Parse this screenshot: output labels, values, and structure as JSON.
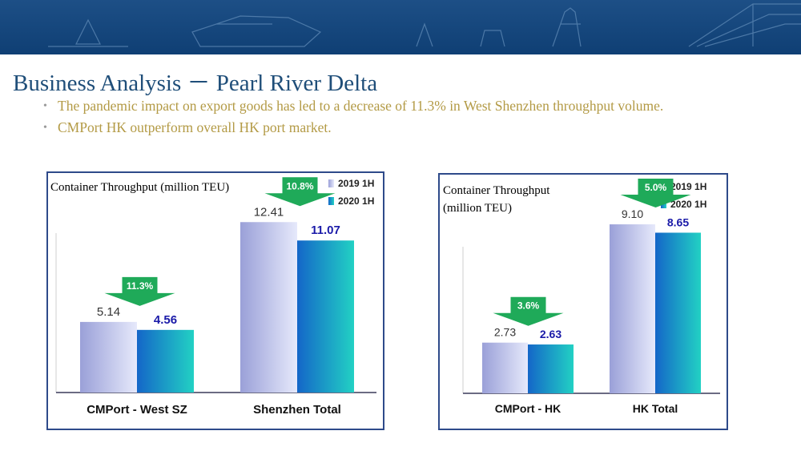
{
  "page": {
    "title": "Business Analysis － Pearl River Delta",
    "bullets": [
      "The pandemic impact on export goods has led to a decrease of 11.3% in West Shenzhen throughput volume.",
      "CMPort HK outperform overall HK port market."
    ]
  },
  "colors": {
    "banner": "#154a80",
    "title": "#1f4e79",
    "bullet_text": "#b39a45",
    "panel_border": "#2e4a8a",
    "bar_2019": "#c8cdf0",
    "bar_2020": "#1aaed6",
    "arrow": "#1faa59",
    "value_2020": "#1a1aa8"
  },
  "chart_data": [
    {
      "type": "bar",
      "title": "Container Throughput (million TEU)",
      "categories": [
        "CMPort - West SZ",
        "Shenzhen Total"
      ],
      "series": [
        {
          "name": "2019 1H",
          "values": [
            5.14,
            12.41
          ]
        },
        {
          "name": "2020 1H",
          "values": [
            4.56,
            11.07
          ]
        }
      ],
      "value_labels": {
        "2019 1H": [
          "5.14",
          "12.41"
        ],
        "2020 1H": [
          "4.56",
          "11.07"
        ]
      },
      "change_labels": [
        "11.3%",
        "10.8%"
      ],
      "ylim": [
        0,
        14
      ],
      "grid": false,
      "legend": "top-right"
    },
    {
      "type": "bar",
      "title": "Container Throughput (million TEU)",
      "categories": [
        "CMPort - HK",
        "HK Total"
      ],
      "series": [
        {
          "name": "2019 1H",
          "values": [
            2.73,
            9.1
          ]
        },
        {
          "name": "2020 1H",
          "values": [
            2.63,
            8.65
          ]
        }
      ],
      "value_labels": {
        "2019 1H": [
          "2.73",
          "9.10"
        ],
        "2020 1H": [
          "2.63",
          "8.65"
        ]
      },
      "change_labels": [
        "3.6%",
        "5.0%"
      ],
      "ylim": [
        0,
        11
      ],
      "grid": false,
      "legend": "top-right"
    }
  ]
}
